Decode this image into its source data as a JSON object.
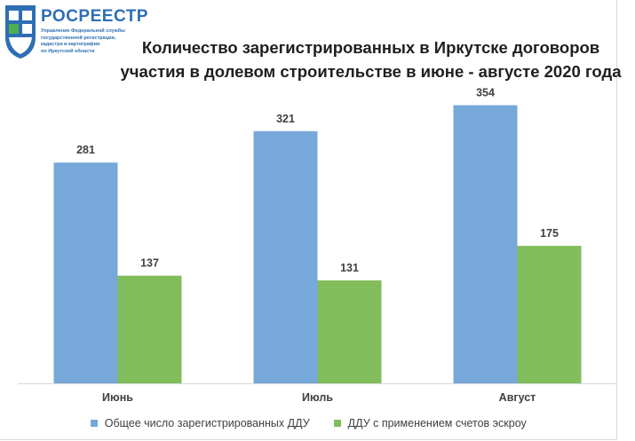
{
  "logo": {
    "name": "РОСРЕЕСТР",
    "subtitle_lines": [
      "Управление Федеральной службы",
      "государственной регистрации,",
      "кадастра и картографии",
      "по Иркутской области"
    ]
  },
  "colors": {
    "series1": "#77a8da",
    "series2": "#82bd5c",
    "logo_blue": "#2e6eb4",
    "logo_green": "#4caf50"
  },
  "chart_data": {
    "type": "bar",
    "title_lines": [
      "Количество зарегистрированных в Иркутске договоров",
      "участия в долевом строительстве в июне - августе 2020 года"
    ],
    "categories": [
      "Июнь",
      "Июль",
      "Август"
    ],
    "series": [
      {
        "name": "Общее число зарегистрированных ДДУ",
        "values": [
          281,
          321,
          354
        ]
      },
      {
        "name": "ДДУ с применением счетов эскроу",
        "values": [
          137,
          131,
          175
        ]
      }
    ],
    "ylim": [
      0,
      375
    ],
    "grid": false,
    "legend_position": "bottom"
  }
}
